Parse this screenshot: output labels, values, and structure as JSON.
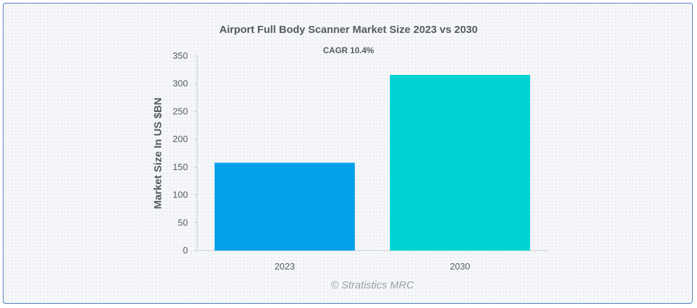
{
  "chart_data": {
    "type": "bar",
    "title": "Airport Full Body Scanner Market Size 2023 vs 2030",
    "subtitle": "CAGR 10.4%",
    "categories": [
      "2023",
      "2030"
    ],
    "values": [
      158,
      316
    ],
    "colors": [
      "#03a0ea",
      "#00d3d3"
    ],
    "xlabel": "",
    "ylabel": "Market Size In US $BN",
    "ylim": [
      0,
      350
    ],
    "yticks": [
      "0",
      "50",
      "100",
      "150",
      "200",
      "250",
      "300",
      "350"
    ],
    "grid": false,
    "legend": "none"
  },
  "watermark": "© Stratistics MRC",
  "colors": {
    "border": "#4f81bd",
    "axis": "#c8ccd0",
    "text": "#555a60"
  }
}
